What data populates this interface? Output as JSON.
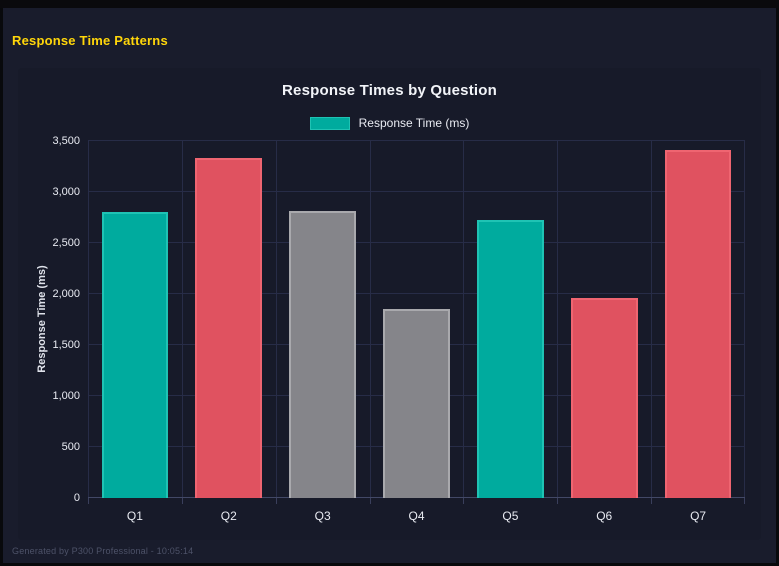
{
  "page": {
    "header_title": "Response Time Patterns",
    "footer_text": "Generated by P300 Professional - 10:05:14",
    "accent_color": "#ffd60a"
  },
  "chart": {
    "title": "Response Times by Question",
    "legend_label": "Response Time (ms)",
    "y_axis_title": "Response Time (ms)"
  },
  "chart_data": {
    "type": "bar",
    "title": "Response Times by Question",
    "categories": [
      "Q1",
      "Q2",
      "Q3",
      "Q4",
      "Q5",
      "Q6",
      "Q7"
    ],
    "series": [
      {
        "name": "Response Time (ms)",
        "values": [
          2800,
          3330,
          2810,
          1855,
          2730,
          1960,
          3410
        ]
      }
    ],
    "bar_color_keys": [
      "teal",
      "red",
      "gray",
      "gray",
      "teal",
      "red",
      "red"
    ],
    "palette": {
      "teal": {
        "fill": "#00ab9e",
        "border": "#1fc3b4"
      },
      "red": {
        "fill": "#e05260",
        "border": "#ef6571"
      },
      "gray": {
        "fill": "#85858a",
        "border": "#a9a9ad"
      }
    },
    "xlabel": "",
    "ylabel": "Response Time (ms)",
    "ylim": [
      0,
      3500
    ],
    "ytick_step": 500,
    "ytick_labels": [
      "0",
      "500",
      "1,000",
      "1,500",
      "2,000",
      "2,500",
      "3,000",
      "3,500"
    ],
    "grid": true,
    "legend_position": "top"
  }
}
